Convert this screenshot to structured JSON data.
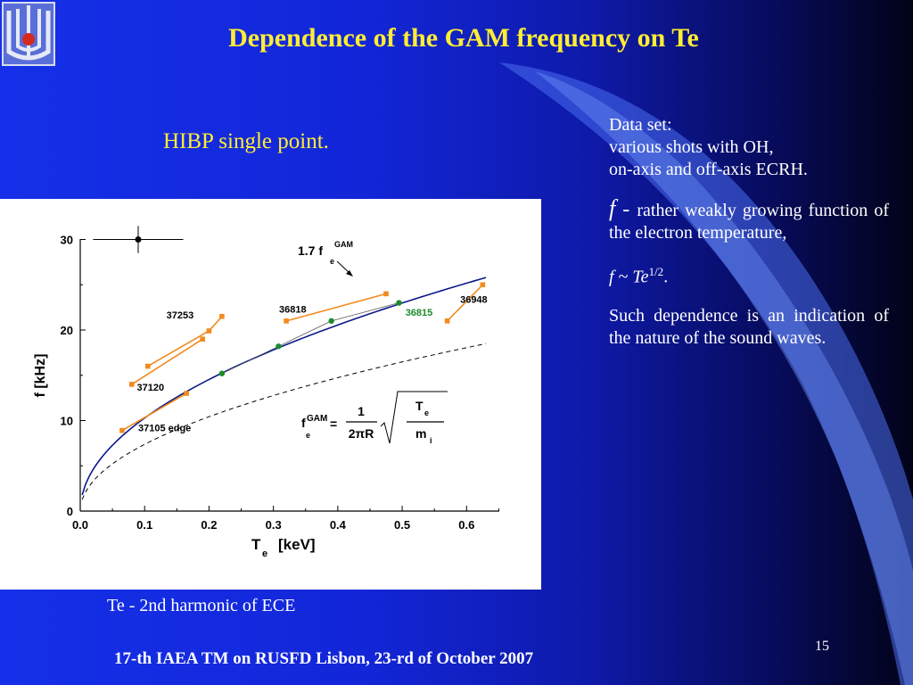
{
  "slide": {
    "title": "Dependence of the GAM frequency on Te",
    "subtitle": "HIBP single point.",
    "caption": "Te - 2nd harmonic of ECE",
    "footer": "17-th IAEA TM on RUSFD Lisbon, 23-rd of October 2007",
    "page_number": "15",
    "logo_icon": "institute-logo-icon"
  },
  "side_text": {
    "data_set_label": "Data set:",
    "data_set_line1": "various shots with OH,",
    "data_set_line2": "on-axis and off-axis ECRH.",
    "f_symbol": "f",
    "f_dash": " - ",
    "f_statement": "rather weakly growing function of the electron temperature,",
    "scaling_f": "f",
    "scaling_mid": " ~ ",
    "scaling_te": "Te",
    "scaling_exp": "1/2",
    "scaling_end": ".",
    "conclusion": "Such dependence is an indication of the nature of the sound waves."
  },
  "chart_data": {
    "type": "scatter",
    "xlabel_main": "T",
    "xlabel_sub": "e",
    "xlabel_unit": "[keV]",
    "ylabel": "f [kHz]",
    "xlim": [
      0.0,
      0.65
    ],
    "ylim": [
      0,
      30
    ],
    "x_ticks": [
      "0.0",
      "0.1",
      "0.2",
      "0.3",
      "0.4",
      "0.5",
      "0.6"
    ],
    "y_ticks": [
      "0",
      "10",
      "20",
      "30"
    ],
    "colors": {
      "orange": "#f28a1e",
      "green": "#1c8c2c",
      "curve": "#0a1a8a",
      "gray": "#555555"
    },
    "error_bar": {
      "x": 0.09,
      "y": 30,
      "xerr": 0.07,
      "yerr": 1.5
    },
    "shots": [
      {
        "label": "37253",
        "points": [
          [
            0.105,
            16
          ],
          [
            0.2,
            19.9
          ],
          [
            0.22,
            21.5
          ]
        ],
        "label_pos": [
          0.155,
          21.3
        ],
        "anchor": "middle"
      },
      {
        "label": "37120",
        "points": [
          [
            0.08,
            14
          ],
          [
            0.19,
            19
          ]
        ],
        "label_pos": [
          0.088,
          13.3
        ],
        "anchor": "start"
      },
      {
        "label": "37105 edge",
        "points": [
          [
            0.065,
            8.9
          ],
          [
            0.165,
            13
          ]
        ],
        "label_pos": [
          0.09,
          8.8
        ],
        "anchor": "start"
      },
      {
        "label": "36818",
        "points": [
          [
            0.32,
            21
          ],
          [
            0.475,
            24
          ]
        ],
        "label_pos": [
          0.33,
          21.9
        ],
        "anchor": "middle"
      },
      {
        "label": "36948",
        "points": [
          [
            0.57,
            21
          ],
          [
            0.625,
            25
          ]
        ],
        "label_pos": [
          0.59,
          23
        ],
        "anchor": "start"
      }
    ],
    "green_points": {
      "label": "36815",
      "points": [
        [
          0.22,
          15.2
        ],
        [
          0.308,
          18.2
        ],
        [
          0.39,
          21
        ],
        [
          0.495,
          23
        ]
      ],
      "label_pos": [
        0.505,
        21.6
      ]
    },
    "gam_curve": {
      "label_coef": "1.7 f",
      "label_sup": "GAM",
      "label_sub": "e",
      "coef": 32.5,
      "x_range": [
        0.003,
        0.63
      ]
    },
    "dashed_curve": {
      "coef": 23.3,
      "x_range": [
        0.003,
        0.63
      ]
    },
    "formula": {
      "f": "f",
      "sup": "GAM",
      "sub": "e",
      "equals": "=",
      "numerator": "1",
      "denominator": "2πR",
      "rad_top": "T",
      "rad_top_sub": "e",
      "rad_bottom": "m",
      "rad_bottom_sub": "i"
    }
  }
}
